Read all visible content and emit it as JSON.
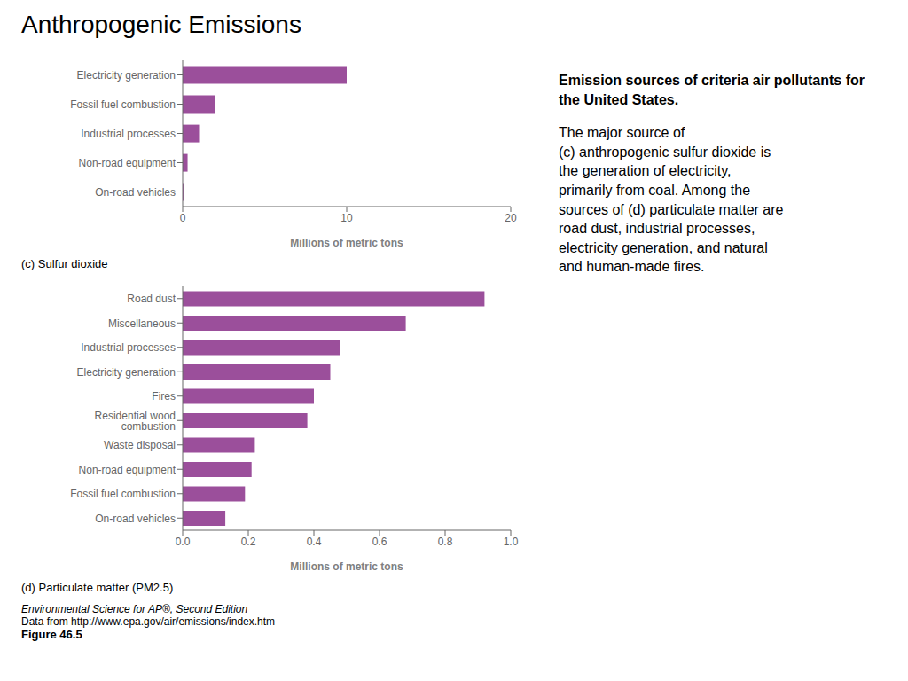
{
  "title": "Anthropogenic Emissions",
  "annotations": [
    "Environmental Science for AP®, Second Edition",
    "Data from http://www.epa.gov/air/emissions/index.htm",
    "Figure 46.5",
    "Emission sources of criteria air pollutants for the United States.",
    "The major source of\n(c) anthropogenic sulfur dioxide is\nthe generation of electricity,\nprimarily from coal. Among the\nsources of (d) particulate matter are\nroad dust, industrial processes,\nelectricity generation, and natural\nand human-made fires."
  ],
  "chart_data": [
    {
      "type": "bar",
      "orientation": "horizontal",
      "title": "(c) Sulfur dioxide",
      "x_label": "Millions of metric tons",
      "categories": [
        "Electricity generation",
        "Fossil fuel combustion",
        "Industrial processes",
        "Non-road equipment",
        "On-road vehicles"
      ],
      "values": [
        10.0,
        2.0,
        1.0,
        0.3,
        0.05
      ],
      "color": "#9b4f9b",
      "xlim": [
        0,
        20
      ],
      "xticks": [
        0,
        10,
        20
      ],
      "grid": false
    },
    {
      "type": "bar",
      "orientation": "horizontal",
      "title": "(d) Particulate matter (PM2.5)",
      "x_label": "Millions of metric tons",
      "categories": [
        "Road dust",
        "Miscellaneous",
        "Industrial processes",
        "Electricity generation",
        "Fires",
        "Residential wood combustion",
        "Waste disposal",
        "Non-road equipment",
        "Fossil fuel combustion",
        "On-road vehicles"
      ],
      "values": [
        0.92,
        0.68,
        0.48,
        0.45,
        0.4,
        0.38,
        0.22,
        0.21,
        0.19,
        0.13
      ],
      "color": "#9b4f9b",
      "xlim": [
        0,
        1.0
      ],
      "xticks": [
        {
          "value": 0,
          "label": "0.0"
        },
        0.2,
        0.4,
        0.6,
        0.8,
        {
          "value": 1.0,
          "label": "1.0"
        }
      ],
      "grid": false
    }
  ]
}
